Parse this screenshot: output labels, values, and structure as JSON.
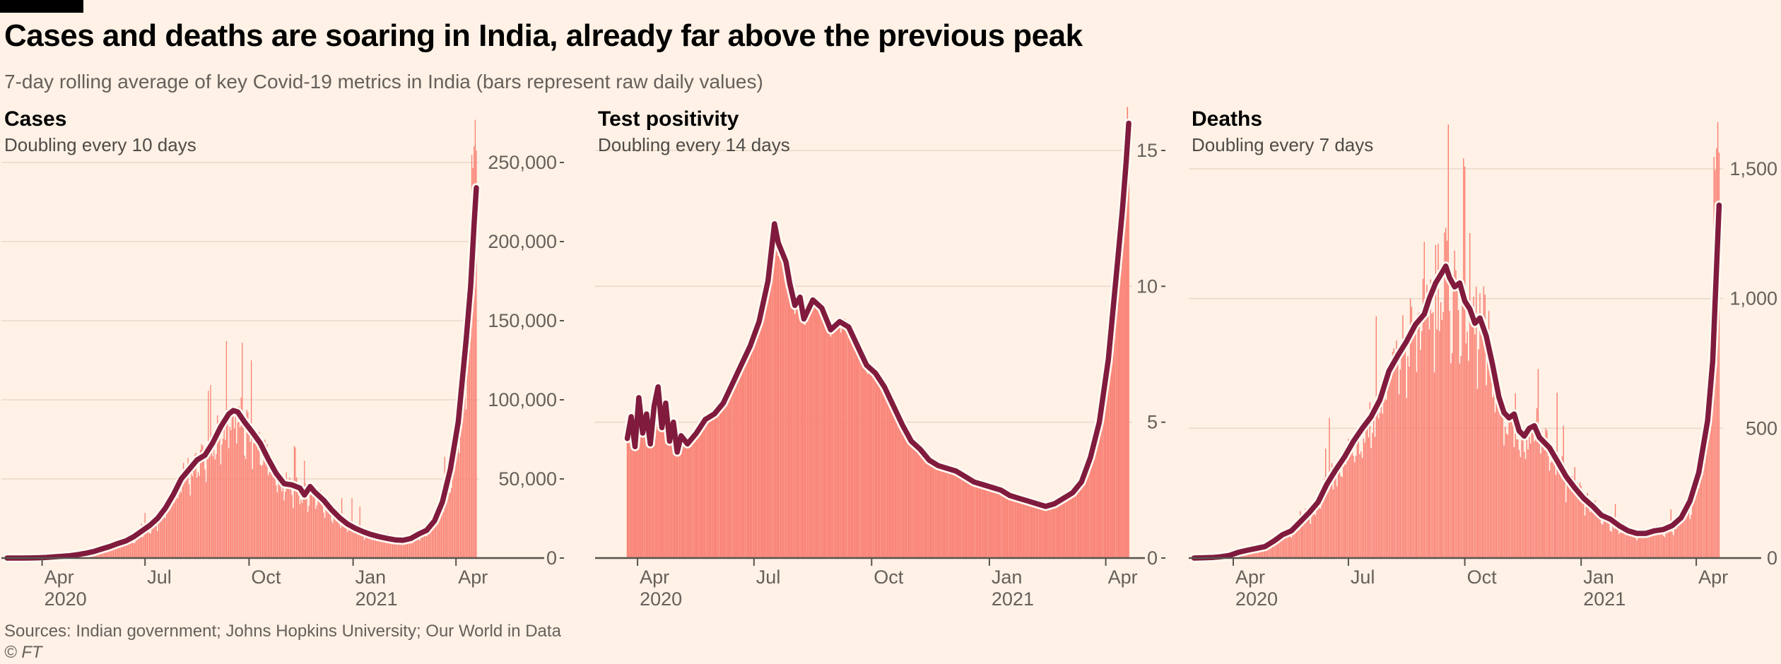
{
  "header": {
    "title": "Cases and deaths are soaring in India, already far above the previous peak",
    "subtitle": "7-day rolling average of key Covid-19 metrics in India (bars represent raw daily values)"
  },
  "footer": {
    "sources": "Sources: Indian government; Johns Hopkins University; Our World in Data",
    "copyright": "© FT"
  },
  "colors": {
    "background": "#fff1e5",
    "flag": "#000000",
    "title_text": "#000000",
    "muted_text": "#66605b",
    "axis": "#57534e",
    "grid": "#e8d9ca",
    "bar": "#f97d70",
    "line": "#801b3d",
    "line_halo": "#fffaf2"
  },
  "chart_data": [
    {
      "type": "bar+line",
      "title": "Cases",
      "subtitle": "Doubling every 10 days",
      "line_series_name": "7-day rolling average",
      "bar_series_name": "raw daily values",
      "x_start_date": "2020-03-01",
      "x_unit": "days since 1 Mar 2020",
      "xticks": [
        {
          "day": 31,
          "label": "Apr",
          "year": "2020"
        },
        {
          "day": 122,
          "label": "Jul"
        },
        {
          "day": 214,
          "label": "Oct"
        },
        {
          "day": 306,
          "label": "Jan",
          "year": "2021"
        },
        {
          "day": 397,
          "label": "Apr"
        }
      ],
      "ylim": [
        0,
        260000
      ],
      "yticks": [
        {
          "v": 0,
          "label": "0"
        },
        {
          "v": 50000,
          "label": "50,000"
        },
        {
          "v": 100000,
          "label": "100,000"
        },
        {
          "v": 150000,
          "label": "150,000"
        },
        {
          "v": 200000,
          "label": "200,000"
        },
        {
          "v": 250000,
          "label": "250,000"
        }
      ],
      "grid": true,
      "legend": "none",
      "bars_start_day": 10,
      "max_daily_bar": 277000,
      "spike_days": [
        [
          305,
          1.9
        ],
        [
          312,
          1.85
        ]
      ],
      "avg_points": [
        [
          0,
          3
        ],
        [
          7,
          5
        ],
        [
          14,
          15
        ],
        [
          21,
          60
        ],
        [
          28,
          160
        ],
        [
          35,
          420
        ],
        [
          42,
          750
        ],
        [
          49,
          1100
        ],
        [
          56,
          1500
        ],
        [
          63,
          2200
        ],
        [
          70,
          3100
        ],
        [
          77,
          4200
        ],
        [
          84,
          5800
        ],
        [
          91,
          7300
        ],
        [
          98,
          9200
        ],
        [
          105,
          10800
        ],
        [
          112,
          13500
        ],
        [
          119,
          17000
        ],
        [
          126,
          20500
        ],
        [
          133,
          25000
        ],
        [
          140,
          31500
        ],
        [
          147,
          40000
        ],
        [
          154,
          50000
        ],
        [
          161,
          56000
        ],
        [
          168,
          62000
        ],
        [
          175,
          65000
        ],
        [
          182,
          73000
        ],
        [
          189,
          83000
        ],
        [
          196,
          91000
        ],
        [
          200,
          93200
        ],
        [
          204,
          92300
        ],
        [
          210,
          86000
        ],
        [
          217,
          79500
        ],
        [
          224,
          72500
        ],
        [
          231,
          62500
        ],
        [
          238,
          53500
        ],
        [
          245,
          47000
        ],
        [
          252,
          46200
        ],
        [
          259,
          44200
        ],
        [
          263,
          39800
        ],
        [
          268,
          45200
        ],
        [
          272,
          41800
        ],
        [
          280,
          36500
        ],
        [
          287,
          30500
        ],
        [
          294,
          25500
        ],
        [
          301,
          21500
        ],
        [
          308,
          18800
        ],
        [
          315,
          16600
        ],
        [
          322,
          14800
        ],
        [
          329,
          13500
        ],
        [
          336,
          12400
        ],
        [
          343,
          11500
        ],
        [
          350,
          11200
        ],
        [
          357,
          12300
        ],
        [
          364,
          15200
        ],
        [
          371,
          17500
        ],
        [
          378,
          23500
        ],
        [
          385,
          35500
        ],
        [
          392,
          56000
        ],
        [
          399,
          86000
        ],
        [
          406,
          138000
        ],
        [
          410,
          172000
        ],
        [
          413,
          211000
        ],
        [
          415,
          234000
        ]
      ]
    },
    {
      "type": "bar+line",
      "title": "Test positivity",
      "subtitle": "Doubling every 14 days",
      "line_series_name": "7-day rolling average",
      "bar_series_name": "raw daily values",
      "x_start_date": "2020-03-01",
      "x_unit": "days since 1 Mar 2020",
      "xticks": [
        {
          "day": 31,
          "label": "Apr",
          "year": "2020"
        },
        {
          "day": 122,
          "label": "Jul"
        },
        {
          "day": 214,
          "label": "Oct"
        },
        {
          "day": 306,
          "label": "Jan",
          "year": "2021"
        },
        {
          "day": 397,
          "label": "Apr"
        }
      ],
      "ylim": [
        0,
        16.6
      ],
      "yticks": [
        {
          "v": 0,
          "label": "0"
        },
        {
          "v": 5,
          "label": "5"
        },
        {
          "v": 10,
          "label": "10"
        },
        {
          "v": 15,
          "label": "15"
        }
      ],
      "grid": true,
      "legend": "none",
      "bars_start_day": 23,
      "max_daily_bar": 16.6,
      "spike_days": [],
      "avg_points": [
        [
          23,
          4.4
        ],
        [
          26,
          5.2
        ],
        [
          29,
          4.1
        ],
        [
          32,
          5.9
        ],
        [
          35,
          4.6
        ],
        [
          38,
          5.3
        ],
        [
          41,
          4.2
        ],
        [
          44,
          5.6
        ],
        [
          47,
          6.3
        ],
        [
          50,
          4.8
        ],
        [
          53,
          5.7
        ],
        [
          56,
          4.3
        ],
        [
          59,
          5.0
        ],
        [
          62,
          3.9
        ],
        [
          65,
          4.5
        ],
        [
          70,
          4.2
        ],
        [
          77,
          4.6
        ],
        [
          84,
          5.1
        ],
        [
          91,
          5.3
        ],
        [
          98,
          5.7
        ],
        [
          105,
          6.4
        ],
        [
          112,
          7.1
        ],
        [
          119,
          7.8
        ],
        [
          126,
          8.7
        ],
        [
          133,
          10.2
        ],
        [
          138,
          12.3
        ],
        [
          141,
          11.6
        ],
        [
          147,
          10.9
        ],
        [
          150,
          10.1
        ],
        [
          154,
          9.3
        ],
        [
          158,
          9.6
        ],
        [
          161,
          8.8
        ],
        [
          168,
          9.5
        ],
        [
          175,
          9.2
        ],
        [
          182,
          8.4
        ],
        [
          189,
          8.7
        ],
        [
          196,
          8.5
        ],
        [
          203,
          7.8
        ],
        [
          210,
          7.1
        ],
        [
          217,
          6.8
        ],
        [
          224,
          6.3
        ],
        [
          231,
          5.6
        ],
        [
          238,
          4.9
        ],
        [
          245,
          4.3
        ],
        [
          252,
          4.0
        ],
        [
          259,
          3.6
        ],
        [
          266,
          3.4
        ],
        [
          273,
          3.3
        ],
        [
          280,
          3.2
        ],
        [
          287,
          3.0
        ],
        [
          294,
          2.8
        ],
        [
          301,
          2.7
        ],
        [
          308,
          2.6
        ],
        [
          315,
          2.5
        ],
        [
          322,
          2.3
        ],
        [
          329,
          2.2
        ],
        [
          336,
          2.1
        ],
        [
          343,
          2.0
        ],
        [
          350,
          1.9
        ],
        [
          357,
          2.0
        ],
        [
          364,
          2.2
        ],
        [
          371,
          2.4
        ],
        [
          378,
          2.8
        ],
        [
          385,
          3.7
        ],
        [
          392,
          5.0
        ],
        [
          399,
          7.3
        ],
        [
          406,
          10.8
        ],
        [
          410,
          12.8
        ],
        [
          413,
          14.6
        ],
        [
          415,
          16.0
        ]
      ]
    },
    {
      "type": "bar+line",
      "title": "Deaths",
      "subtitle": "Doubling every 7 days",
      "line_series_name": "7-day rolling average",
      "bar_series_name": "raw daily values",
      "x_start_date": "2020-03-01",
      "x_unit": "days since 1 Mar 2020",
      "xticks": [
        {
          "day": 31,
          "label": "Apr",
          "year": "2020"
        },
        {
          "day": 122,
          "label": "Jul"
        },
        {
          "day": 214,
          "label": "Oct"
        },
        {
          "day": 306,
          "label": "Jan",
          "year": "2021"
        },
        {
          "day": 397,
          "label": "Apr"
        }
      ],
      "ylim": [
        0,
        1700
      ],
      "yticks": [
        {
          "v": 0,
          "label": "0"
        },
        {
          "v": 500,
          "label": "500"
        },
        {
          "v": 1000,
          "label": "1,000"
        },
        {
          "v": 1500,
          "label": "1,500"
        }
      ],
      "grid": true,
      "legend": "none",
      "bars_start_day": 25,
      "max_daily_bar": 1680,
      "spike_days": [
        [
          107,
          1.8
        ],
        [
          144,
          1.6
        ],
        [
          287,
          1.7
        ]
      ],
      "avg_points": [
        [
          0,
          0
        ],
        [
          7,
          1
        ],
        [
          14,
          2
        ],
        [
          21,
          5
        ],
        [
          28,
          10
        ],
        [
          35,
          22
        ],
        [
          42,
          30
        ],
        [
          49,
          37
        ],
        [
          56,
          44
        ],
        [
          63,
          65
        ],
        [
          70,
          90
        ],
        [
          77,
          105
        ],
        [
          84,
          140
        ],
        [
          91,
          175
        ],
        [
          98,
          215
        ],
        [
          105,
          285
        ],
        [
          112,
          340
        ],
        [
          119,
          390
        ],
        [
          126,
          450
        ],
        [
          133,
          500
        ],
        [
          140,
          545
        ],
        [
          147,
          610
        ],
        [
          154,
          720
        ],
        [
          161,
          780
        ],
        [
          168,
          835
        ],
        [
          175,
          900
        ],
        [
          182,
          940
        ],
        [
          186,
          1000
        ],
        [
          191,
          1060
        ],
        [
          196,
          1100
        ],
        [
          199,
          1125
        ],
        [
          202,
          1080
        ],
        [
          206,
          1045
        ],
        [
          210,
          1060
        ],
        [
          214,
          990
        ],
        [
          218,
          960
        ],
        [
          222,
          905
        ],
        [
          226,
          925
        ],
        [
          231,
          855
        ],
        [
          236,
          745
        ],
        [
          241,
          620
        ],
        [
          245,
          560
        ],
        [
          249,
          540
        ],
        [
          253,
          555
        ],
        [
          257,
          490
        ],
        [
          261,
          470
        ],
        [
          265,
          500
        ],
        [
          269,
          510
        ],
        [
          273,
          465
        ],
        [
          277,
          445
        ],
        [
          281,
          425
        ],
        [
          287,
          375
        ],
        [
          294,
          315
        ],
        [
          301,
          270
        ],
        [
          308,
          230
        ],
        [
          315,
          200
        ],
        [
          322,
          165
        ],
        [
          329,
          150
        ],
        [
          336,
          125
        ],
        [
          343,
          105
        ],
        [
          350,
          95
        ],
        [
          357,
          95
        ],
        [
          364,
          105
        ],
        [
          371,
          110
        ],
        [
          378,
          125
        ],
        [
          385,
          155
        ],
        [
          392,
          220
        ],
        [
          399,
          330
        ],
        [
          406,
          530
        ],
        [
          410,
          760
        ],
        [
          413,
          1120
        ],
        [
          415,
          1360
        ]
      ]
    }
  ]
}
